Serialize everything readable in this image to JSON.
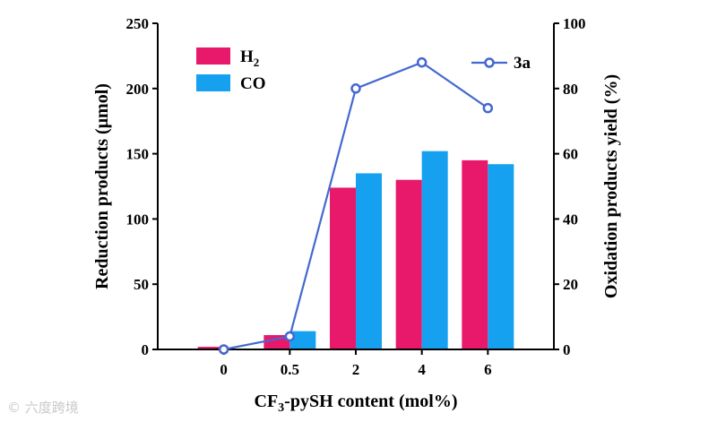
{
  "chart_data": {
    "type": "bar",
    "categories": [
      "0",
      "0.5",
      "2",
      "4",
      "6"
    ],
    "xlabel": {
      "pre": "CF",
      "sub": "3",
      "post": "-pySH content (mol%)"
    },
    "ylabel_left": "Reduction products (μmol)",
    "ylabel_right": "Oxidation products yield (%)",
    "ylim_left": [
      0,
      250
    ],
    "yticks_left": [
      0,
      50,
      100,
      150,
      200,
      250
    ],
    "ylim_right": [
      0,
      100
    ],
    "yticks_right": [
      0,
      20,
      40,
      60,
      80,
      100
    ],
    "grid": false,
    "legend_placement": "top-left",
    "series": [
      {
        "name": {
          "pre": "H",
          "sub": "2"
        },
        "values": [
          2,
          11,
          124,
          130,
          145
        ],
        "axis": "left",
        "kind": "bar",
        "color": "#e8196b"
      },
      {
        "name": {
          "pre": "CO",
          "sub": ""
        },
        "values": [
          0,
          14,
          135,
          152,
          142
        ],
        "axis": "left",
        "kind": "bar",
        "color": "#16a0f0"
      },
      {
        "name": {
          "pre": "3a",
          "sub": ""
        },
        "values": [
          0,
          4,
          80,
          88,
          74
        ],
        "axis": "right",
        "kind": "line",
        "color": "#4468d0"
      }
    ]
  },
  "watermark": "© 六度跨境"
}
